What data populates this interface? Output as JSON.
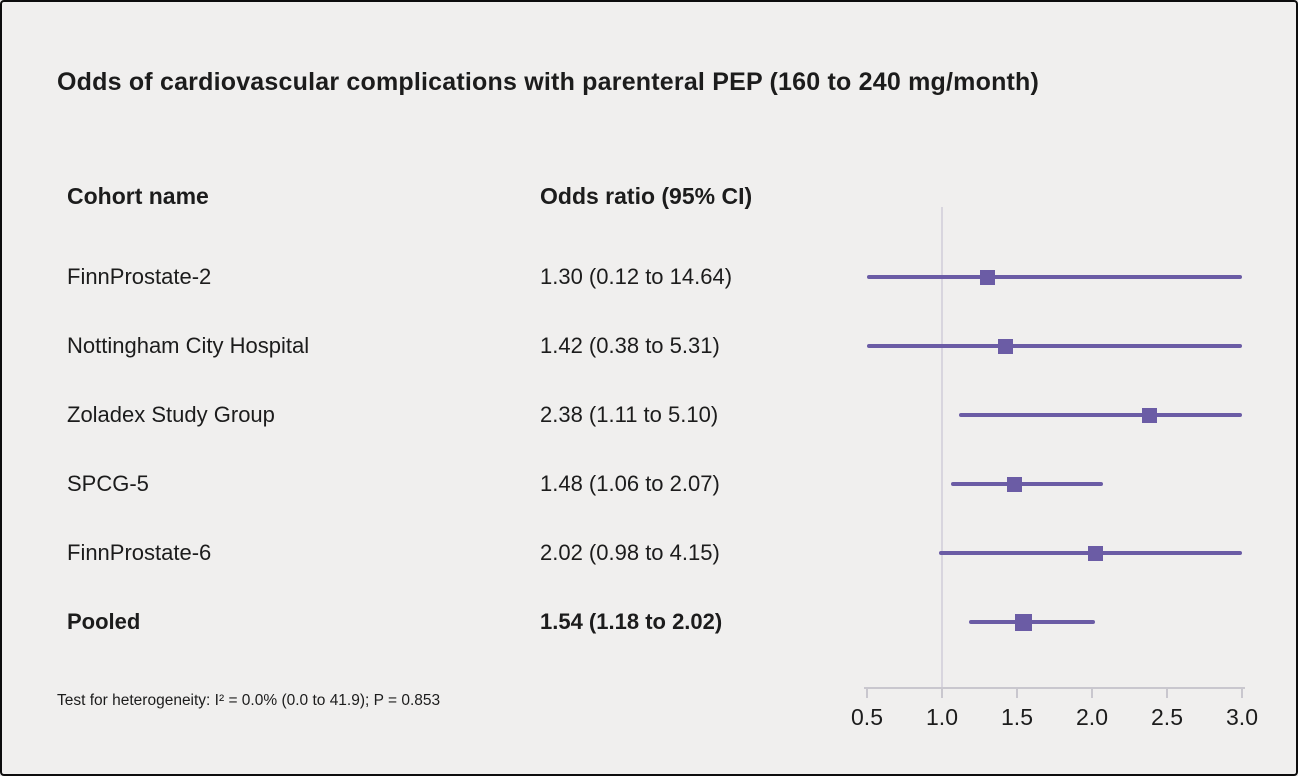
{
  "chart_data": {
    "type": "forest",
    "title": "Odds of cardiovascular complications with parenteral PEP (160 to 240 mg/month)",
    "columns": {
      "cohort": "Cohort name",
      "or_ci": "Odds ratio (95% CI)"
    },
    "rows": [
      {
        "name": "FinnProstate-2",
        "label": "1.30 (0.12 to 14.64)",
        "or": 1.3,
        "lo": 0.12,
        "hi": 14.64,
        "bold": false
      },
      {
        "name": "Nottingham City Hospital",
        "label": "1.42 (0.38 to 5.31)",
        "or": 1.42,
        "lo": 0.38,
        "hi": 5.31,
        "bold": false
      },
      {
        "name": "Zoladex Study Group",
        "label": "2.38 (1.11 to 5.10)",
        "or": 2.38,
        "lo": 1.11,
        "hi": 5.1,
        "bold": false
      },
      {
        "name": "SPCG-5",
        "label": "1.48 (1.06 to 2.07)",
        "or": 1.48,
        "lo": 1.06,
        "hi": 2.07,
        "bold": false
      },
      {
        "name": "FinnProstate-6",
        "label": "2.02 (0.98 to 4.15)",
        "or": 2.02,
        "lo": 0.98,
        "hi": 4.15,
        "bold": false
      },
      {
        "name": "Pooled",
        "label": "1.54 (1.18 to 2.02)",
        "or": 1.54,
        "lo": 1.18,
        "hi": 2.02,
        "bold": true
      }
    ],
    "axis": {
      "min": 0.5,
      "max": 3.0,
      "reference": 1.0,
      "tick_labels": [
        "0.5",
        "1.0",
        "1.5",
        "2.0",
        "2.5",
        "3.0"
      ],
      "tick_values": [
        0.5,
        1.0,
        1.5,
        2.0,
        2.5,
        3.0
      ]
    },
    "footnote": "Test for heterogeneity: I² = 0.0% (0.0 to 41.9); P = 0.853",
    "colors": {
      "marker": "#6b5ca5",
      "ci_line": "#6b5ca5",
      "reference_line": "#d8d5de",
      "axis_line": "#c9c7ce",
      "background": "#f0efee"
    },
    "legend": "none",
    "grid": "off"
  }
}
